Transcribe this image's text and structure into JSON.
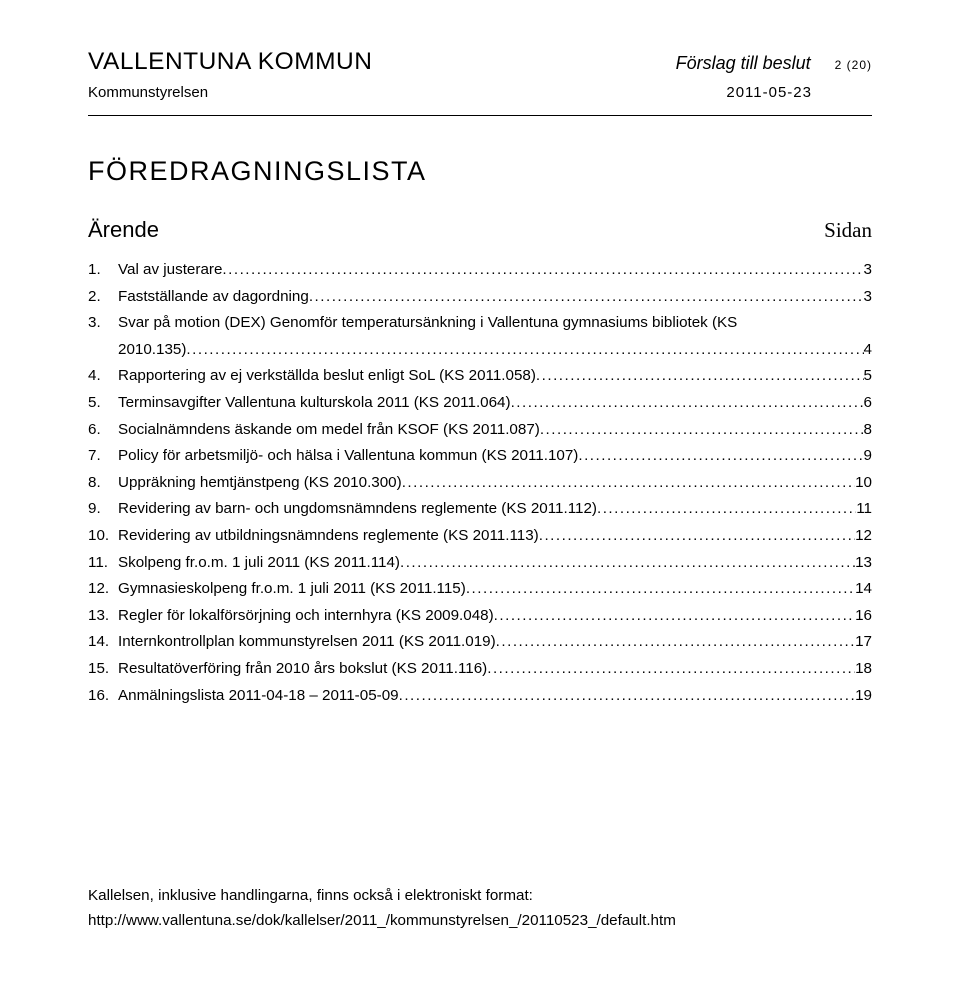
{
  "header": {
    "org": "VALLENTUNA KOMMUN",
    "proposal": "Förslag till beslut",
    "page_count": "2 (20)",
    "committee": "Kommunstyrelsen",
    "date": "2011-05-23"
  },
  "list_title": "FÖREDRAGNINGSLISTA",
  "columns": {
    "left": "Ärende",
    "right": "Sidan"
  },
  "items": [
    {
      "n": "1.",
      "title_a": "Val av justerare",
      "title_b": "",
      "page": "3"
    },
    {
      "n": "2.",
      "title_a": "Fastställande av dagordning",
      "title_b": "",
      "page": "3"
    },
    {
      "n": "3.",
      "title_a": "Svar på motion (DEX) Genomför temperatursänkning i Vallentuna gymnasiums bibliotek (KS",
      "title_b": "2010.135)",
      "page": "4"
    },
    {
      "n": "4.",
      "title_a": "Rapportering av ej verkställda beslut enligt SoL (KS 2011.058)",
      "title_b": "",
      "page": "5"
    },
    {
      "n": "5.",
      "title_a": "Terminsavgifter Vallentuna kulturskola 2011 (KS 2011.064)",
      "title_b": "",
      "page": "6"
    },
    {
      "n": "6.",
      "title_a": "Socialnämndens äskande om medel från KSOF (KS 2011.087)",
      "title_b": "",
      "page": "8"
    },
    {
      "n": "7.",
      "title_a": "Policy för arbetsmiljö- och hälsa i Vallentuna kommun (KS 2011.107)",
      "title_b": "",
      "page": "9"
    },
    {
      "n": "8.",
      "title_a": "Uppräkning hemtjänstpeng (KS 2010.300)",
      "title_b": "",
      "page": "10"
    },
    {
      "n": "9.",
      "title_a": "Revidering av barn- och ungdomsnämndens reglemente (KS 2011.112)",
      "title_b": "",
      "page": "11"
    },
    {
      "n": "10.",
      "title_a": "Revidering av utbildningsnämndens reglemente (KS 2011.113)",
      "title_b": "",
      "page": "12"
    },
    {
      "n": "11.",
      "title_a": "Skolpeng fr.o.m. 1 juli 2011 (KS 2011.114)",
      "title_b": "",
      "page": "13"
    },
    {
      "n": "12.",
      "title_a": "Gymnasieskolpeng fr.o.m. 1 juli 2011 (KS 2011.115)",
      "title_b": "",
      "page": "14"
    },
    {
      "n": "13.",
      "title_a": "Regler för lokalförsörjning och internhyra (KS 2009.048)",
      "title_b": "",
      "page": "16"
    },
    {
      "n": "14.",
      "title_a": "Internkontrollplan kommunstyrelsen 2011 (KS 2011.019)",
      "title_b": "",
      "page": "17"
    },
    {
      "n": "15.",
      "title_a": "Resultatöverföring från 2010 års bokslut (KS 2011.116)",
      "title_b": "",
      "page": "18"
    },
    {
      "n": "16.",
      "title_a": "Anmälningslista 2011-04-18 – 2011-05-09",
      "title_b": "",
      "page": "19"
    }
  ],
  "footer": {
    "line1": "Kallelsen, inklusive handlingarna, finns också i elektroniskt format:",
    "line2": "http://www.vallentuna.se/dok/kallelser/2011_/kommunstyrelsen_/20110523_/default.htm"
  }
}
